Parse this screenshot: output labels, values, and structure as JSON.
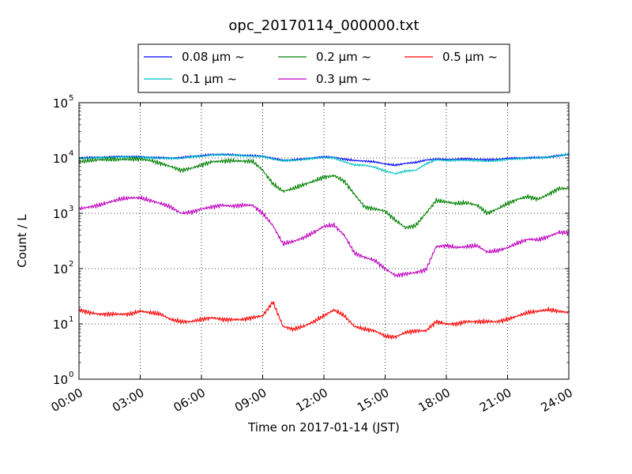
{
  "chart_data": {
    "type": "line",
    "title": "opc_20170114_000000.txt",
    "xlabel": "Time on 2017-01-14 (JST)",
    "ylabel": "Count / L",
    "x_unit": "hours",
    "xlim": [
      0,
      24
    ],
    "ylim": [
      1,
      100000
    ],
    "yscale": "log",
    "grid": true,
    "legend_position": "top",
    "x_ticks": [
      {
        "value": 0,
        "label": "00:00"
      },
      {
        "value": 3,
        "label": "03:00"
      },
      {
        "value": 6,
        "label": "06:00"
      },
      {
        "value": 9,
        "label": "09:00"
      },
      {
        "value": 12,
        "label": "12:00"
      },
      {
        "value": 15,
        "label": "15:00"
      },
      {
        "value": 18,
        "label": "18:00"
      },
      {
        "value": 21,
        "label": "21:00"
      },
      {
        "value": 24,
        "label": "24:00"
      }
    ],
    "y_ticks": [
      {
        "value": 1,
        "base": "10",
        "exp": "0"
      },
      {
        "value": 10,
        "base": "10",
        "exp": "1"
      },
      {
        "value": 100,
        "base": "10",
        "exp": "2"
      },
      {
        "value": 1000,
        "base": "10",
        "exp": "3"
      },
      {
        "value": 10000,
        "base": "10",
        "exp": "4"
      },
      {
        "value": 100000,
        "base": "10",
        "exp": "5"
      }
    ],
    "x": [
      0,
      0.5,
      1,
      1.5,
      2,
      2.5,
      3,
      3.5,
      4,
      4.5,
      5,
      5.5,
      6,
      6.5,
      7,
      7.5,
      8,
      8.5,
      9,
      9.5,
      10,
      10.5,
      11,
      11.5,
      12,
      12.5,
      13,
      13.5,
      14,
      14.5,
      15,
      15.5,
      16,
      16.5,
      17,
      17.5,
      18,
      18.5,
      19,
      19.5,
      20,
      20.5,
      21,
      21.5,
      22,
      22.5,
      23,
      23.5,
      24
    ],
    "series": [
      {
        "name": "0.08 μm ~",
        "color": "#0000ff",
        "values": [
          10000,
          10200,
          10300,
          10400,
          10700,
          10600,
          10500,
          10300,
          10100,
          10000,
          10100,
          10700,
          11000,
          11500,
          11600,
          11400,
          11200,
          11000,
          10800,
          9800,
          9100,
          9300,
          9600,
          10100,
          10500,
          10300,
          9500,
          9000,
          8800,
          8500,
          7800,
          7400,
          8000,
          8300,
          9200,
          9500,
          9400,
          9500,
          9700,
          9500,
          9300,
          9500,
          9800,
          10000,
          10100,
          10200,
          10400,
          11000,
          11500
        ]
      },
      {
        "name": "0.1 μm ~",
        "color": "#00bfbf",
        "values": [
          9800,
          10000,
          10100,
          10300,
          10500,
          10400,
          10300,
          10100,
          9900,
          9800,
          9900,
          10500,
          10800,
          11300,
          11500,
          11300,
          11000,
          10800,
          10600,
          9600,
          8900,
          9100,
          9400,
          9900,
          10300,
          10000,
          8500,
          7500,
          7400,
          6800,
          5800,
          5200,
          5800,
          6000,
          7800,
          9300,
          9000,
          9100,
          9100,
          9000,
          8700,
          9000,
          9400,
          9700,
          9900,
          10000,
          10300,
          11000,
          11900
        ]
      },
      {
        "name": "0.2 μm ~",
        "color": "#008000",
        "values": [
          8500,
          9000,
          9300,
          9400,
          9400,
          9500,
          9600,
          9000,
          8000,
          7000,
          6000,
          6500,
          7500,
          8500,
          8800,
          8900,
          8800,
          8700,
          6000,
          3400,
          2500,
          2800,
          3300,
          3800,
          4500,
          4800,
          3800,
          2200,
          1300,
          1200,
          1100,
          750,
          550,
          600,
          1000,
          1700,
          1600,
          1500,
          1550,
          1400,
          1000,
          1200,
          1500,
          1800,
          2000,
          1800,
          2200,
          2800,
          2800
        ]
      },
      {
        "name": "0.3 μm ~",
        "color": "#bf00bf",
        "values": [
          1200,
          1300,
          1400,
          1600,
          1800,
          1900,
          1900,
          1700,
          1500,
          1300,
          1000,
          1050,
          1200,
          1300,
          1400,
          1350,
          1400,
          1400,
          1000,
          600,
          280,
          310,
          360,
          450,
          580,
          610,
          400,
          190,
          160,
          140,
          100,
          75,
          80,
          85,
          95,
          250,
          260,
          240,
          250,
          260,
          200,
          210,
          240,
          290,
          340,
          330,
          380,
          450,
          450
        ]
      },
      {
        "name": "0.5 μm ~",
        "color": "#ff0000",
        "values": [
          18,
          16,
          15,
          15,
          15,
          15,
          17,
          16,
          15,
          12,
          11,
          11,
          12,
          13,
          12,
          12,
          12,
          13,
          14,
          25,
          9,
          8,
          9,
          11,
          14,
          18,
          14,
          9,
          8,
          7.5,
          6,
          5.8,
          7,
          7.5,
          7.5,
          11,
          10,
          10,
          11,
          11,
          11,
          11,
          12,
          14,
          16,
          17,
          18,
          17,
          16
        ]
      }
    ]
  }
}
